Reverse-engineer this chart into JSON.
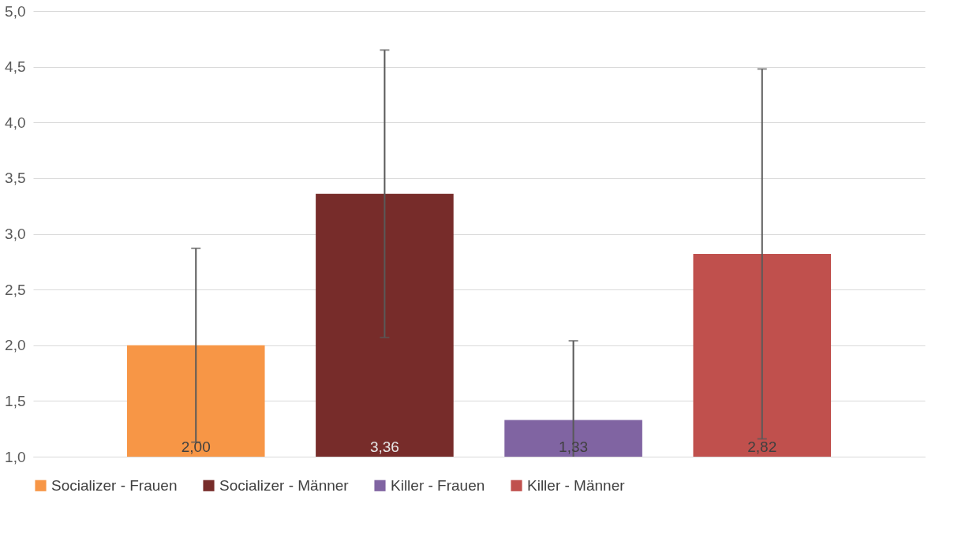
{
  "chart_data": {
    "type": "bar",
    "categories": [
      null
    ],
    "series": [
      {
        "name": "Socializer - Frauen",
        "color": "#f79646",
        "values": [
          2.0
        ],
        "value_labels": [
          "2,00"
        ],
        "errors": [
          0.87
        ]
      },
      {
        "name": "Socializer - Männer",
        "color": "#772c2a",
        "values": [
          3.36
        ],
        "value_labels": [
          "3,36"
        ],
        "errors": [
          1.29
        ]
      },
      {
        "name": "Killer - Frauen",
        "color": "#8064a2",
        "values": [
          1.33
        ],
        "value_labels": [
          "1,33"
        ],
        "errors": [
          [
            1.0,
            2.04
          ]
        ]
      },
      {
        "name": "Killer - Männer",
        "color": "#c0504d",
        "values": [
          2.82
        ],
        "value_labels": [
          "2,82"
        ],
        "errors": [
          1.66
        ]
      }
    ],
    "ylim": [
      1.0,
      5.0
    ],
    "yticks": [
      {
        "value": 1.0,
        "label": "1,0"
      },
      {
        "value": 1.5,
        "label": "1,5"
      },
      {
        "value": 2.0,
        "label": "2,0"
      },
      {
        "value": 2.5,
        "label": "2,5"
      },
      {
        "value": 3.0,
        "label": "3,0"
      },
      {
        "value": 3.5,
        "label": "3,5"
      },
      {
        "value": 4.0,
        "label": "4,0"
      },
      {
        "value": 4.5,
        "label": "4,5"
      },
      {
        "value": 5.0,
        "label": "5,0"
      }
    ],
    "grid": "y",
    "legend": "bottom"
  }
}
